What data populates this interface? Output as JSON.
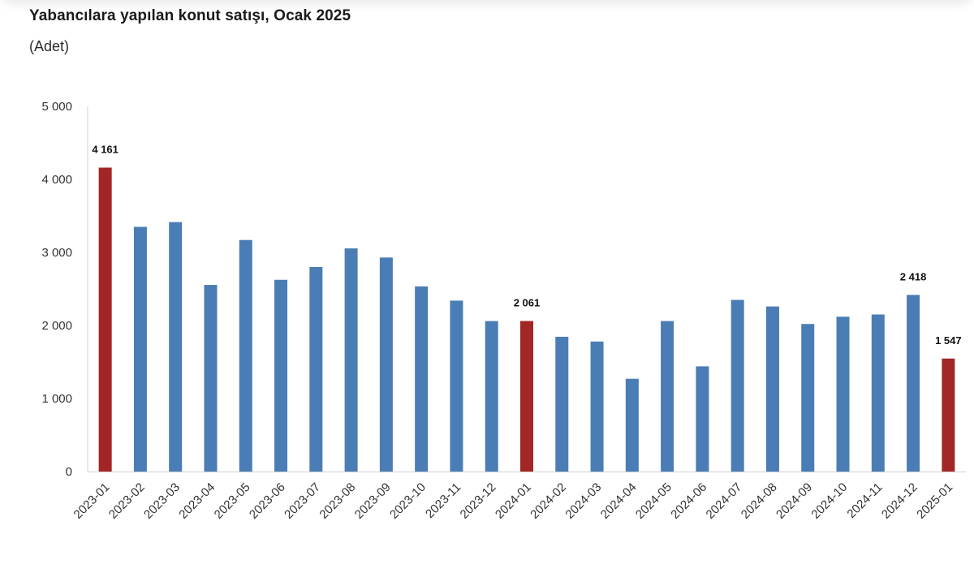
{
  "chart_data": {
    "type": "bar",
    "title": "Yabancılara yapılan konut satışı, Ocak 2025",
    "subtitle": "(Adet)",
    "categories": [
      "2023-01",
      "2023-02",
      "2023-03",
      "2023-04",
      "2023-05",
      "2023-06",
      "2023-07",
      "2023-08",
      "2023-09",
      "2023-10",
      "2023-11",
      "2023-12",
      "2024-01",
      "2024-02",
      "2024-03",
      "2024-04",
      "2024-05",
      "2024-06",
      "2024-07",
      "2024-08",
      "2024-09",
      "2024-10",
      "2024-11",
      "2024-12",
      "2025-01"
    ],
    "values": [
      4161,
      3350,
      3415,
      2555,
      3170,
      2625,
      2800,
      3055,
      2930,
      2535,
      2340,
      2060,
      2061,
      1845,
      1780,
      1270,
      2060,
      1440,
      2350,
      2260,
      2020,
      2120,
      2150,
      2418,
      1547
    ],
    "highlight": [
      0,
      12,
      24
    ],
    "data_labels": [
      {
        "index": 0,
        "text": "4 161"
      },
      {
        "index": 12,
        "text": "2 061"
      },
      {
        "index": 23,
        "text": "2 418"
      },
      {
        "index": 24,
        "text": "1 547"
      }
    ],
    "ylim": [
      0,
      5000
    ],
    "yticks": [
      0,
      1000,
      2000,
      3000,
      4000,
      5000
    ],
    "ytick_labels": [
      "0",
      "1 000",
      "2 000",
      "3 000",
      "4 000",
      "5 000"
    ],
    "grid": false,
    "colors": {
      "bar": "#4a7db5",
      "highlight": "#a32626",
      "axis": "#d0d0d0"
    }
  }
}
